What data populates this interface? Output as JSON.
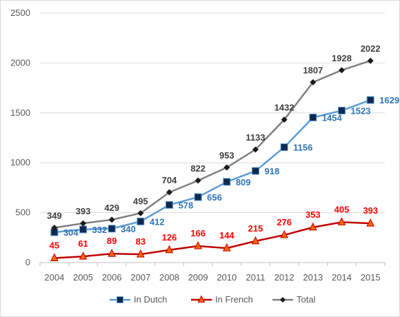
{
  "chart_data": {
    "type": "line",
    "title": "",
    "xlabel": "",
    "ylabel": "",
    "x": [
      "2004",
      "2005",
      "2006",
      "2007",
      "2008",
      "2009",
      "2010",
      "2011",
      "2012",
      "2013",
      "2014",
      "2015"
    ],
    "ylim": [
      0,
      2500
    ],
    "yticks": [
      0,
      500,
      1000,
      1500,
      2000,
      2500
    ],
    "grid": true,
    "legend_position": "bottom",
    "series": [
      {
        "name": "In Dutch",
        "values": [
          304,
          332,
          340,
          412,
          578,
          656,
          809,
          918,
          1156,
          1454,
          1523,
          1629
        ],
        "color": "#5b9bd5",
        "marker": "square",
        "marker_color": "#0d2a4f",
        "label_color": "#2e75b6"
      },
      {
        "name": "In French",
        "values": [
          45,
          61,
          89,
          83,
          126,
          166,
          144,
          215,
          276,
          353,
          405,
          393
        ],
        "color": "#c00000",
        "marker": "triangle",
        "marker_color": "#ff6600",
        "label_color": "#ff0000"
      },
      {
        "name": "Total",
        "values": [
          349,
          393,
          429,
          495,
          704,
          822,
          953,
          1133,
          1432,
          1807,
          1928,
          2022
        ],
        "color": "#7f7f7f",
        "marker": "diamond",
        "marker_color": "#1a1a1a",
        "label_color": "#404040"
      }
    ]
  }
}
